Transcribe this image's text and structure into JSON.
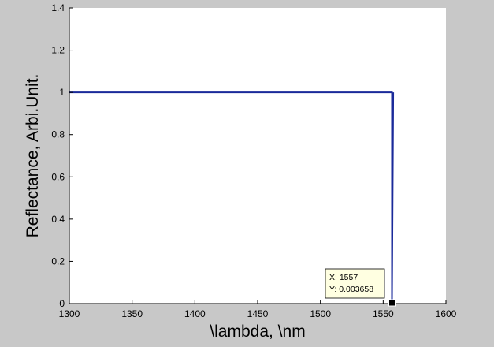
{
  "chart_data": {
    "type": "line",
    "title": "",
    "xlabel": "\\lambda, \\nm",
    "ylabel": "Reflectance, Arbi.Unit.",
    "xlim": [
      1300,
      1600
    ],
    "ylim": [
      0,
      1.4
    ],
    "xticks": [
      1300,
      1350,
      1400,
      1450,
      1500,
      1550,
      1600
    ],
    "yticks": [
      0,
      0.2,
      0.4,
      0.6,
      0.8,
      1,
      1.2,
      1.4
    ],
    "x_tick_labels": [
      "1300",
      "1350",
      "1400",
      "1450",
      "1500",
      "1550",
      "1600"
    ],
    "y_tick_labels": [
      "0",
      "0.2",
      "0.4",
      "0.6",
      "0.8",
      "1",
      "1.2",
      "1.4"
    ],
    "grid": false,
    "series": [
      {
        "name": "reflectance",
        "color": "#1a2a9a",
        "x": [
          1300,
          1557,
          1557,
          1557,
          1558
        ],
        "y": [
          1,
          1,
          1,
          0.003658,
          1
        ]
      }
    ],
    "datatip": {
      "x_value": 1557,
      "y_value": 0.003658,
      "x_text": "X: 1557",
      "y_text": "Y: 0.003658"
    }
  },
  "colors": {
    "figure_background": "#c8c8c8",
    "axes_background": "#ffffff",
    "line": "#1a2a9a",
    "datatip_background": "#ffffe1",
    "marker": "#000000"
  }
}
